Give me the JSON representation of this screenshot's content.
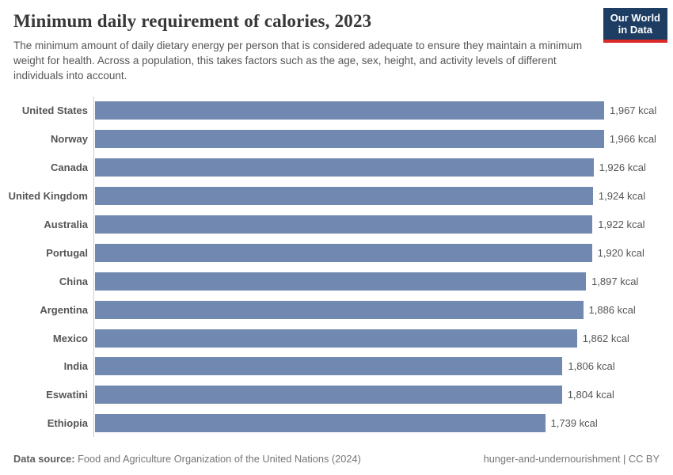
{
  "header": {
    "title": "Minimum daily requirement of calories, 2023",
    "subtitle": "The minimum amount of daily dietary energy per person that is considered adequate to ensure they maintain a minimum weight for health. Across a population, this takes factors such as the age, sex, height, and activity levels of different individuals into account.",
    "logo": {
      "line1": "Our World",
      "line2": "in Data"
    }
  },
  "chart_data": {
    "type": "bar",
    "orientation": "horizontal",
    "title": "Minimum daily requirement of calories, 2023",
    "unit": "kcal",
    "categories": [
      "United States",
      "Norway",
      "Canada",
      "United Kingdom",
      "Australia",
      "Portugal",
      "China",
      "Argentina",
      "Mexico",
      "India",
      "Eswatini",
      "Ethiopia"
    ],
    "values": [
      1967,
      1966,
      1926,
      1924,
      1922,
      1920,
      1897,
      1886,
      1862,
      1806,
      1804,
      1739
    ],
    "value_labels": [
      "1,967 kcal",
      "1,966 kcal",
      "1,926 kcal",
      "1,924 kcal",
      "1,922 kcal",
      "1,920 kcal",
      "1,897 kcal",
      "1,886 kcal",
      "1,862 kcal",
      "1,806 kcal",
      "1,804 kcal",
      "1,739 kcal"
    ],
    "bar_color": "#7189b0",
    "axis_color": "#cccccc",
    "grid": "off",
    "legend": "none"
  },
  "footer": {
    "source_label": "Data source:",
    "source_text": " Food and Agriculture Organization of the United Nations (2024)",
    "right_text": "hunger-and-undernourishment | CC BY"
  }
}
